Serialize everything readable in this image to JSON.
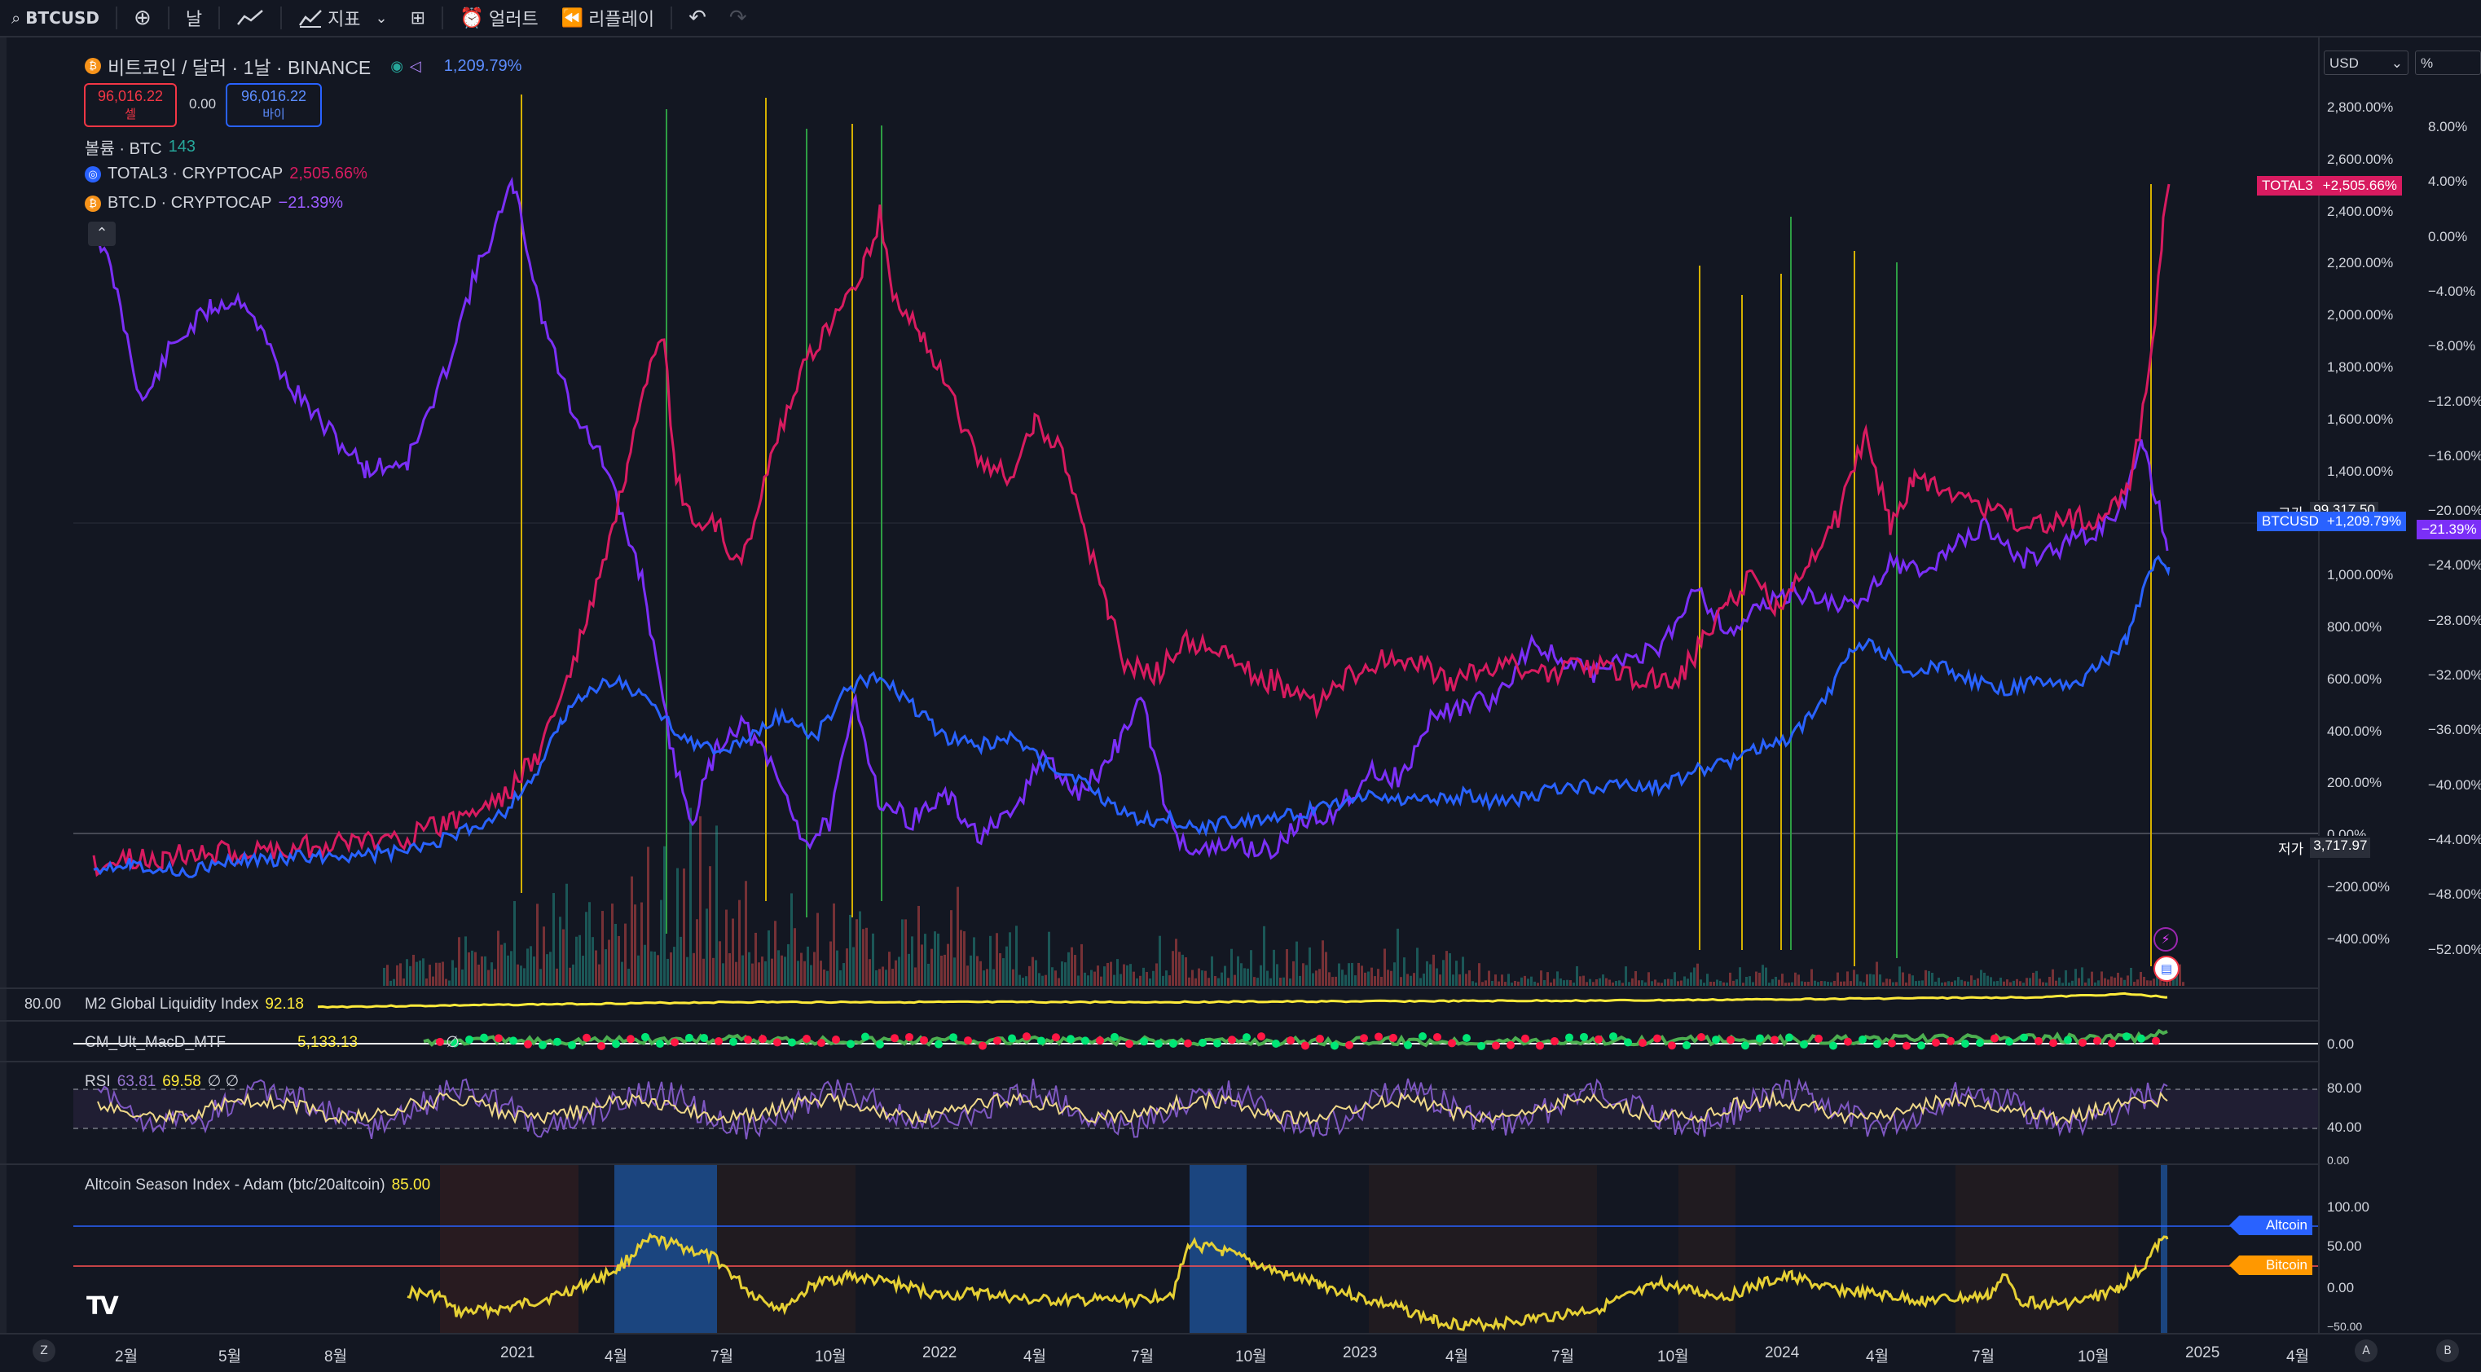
{
  "toolbar": {
    "symbol": "BTCUSD",
    "interval": "날",
    "indicators_label": "지표",
    "alert_label": "얼러트",
    "replay_label": "리플레이"
  },
  "legend": {
    "title": "비트코인 / 달러 · 1날 · BINANCE",
    "change_pct": "1,209.79%",
    "sell_price": "96,016.22",
    "sell_label": "셀",
    "spread": "0.00",
    "buy_price": "96,016.22",
    "buy_label": "바이",
    "volume_label": "볼륨 · BTC",
    "volume_value": "143",
    "total3_label": "TOTAL3 · CRYPTOCAP",
    "total3_value": "2,505.66%",
    "btcd_label": "BTC.D · CRYPTOCAP",
    "btcd_value": "−21.39%"
  },
  "right_axis": {
    "currency": "USD",
    "percent_toggle": "%",
    "labels": [
      "2,800.00%",
      "2,600.00%",
      "2,400.00%",
      "2,200.00%",
      "2,000.00%",
      "1,800.00%",
      "1,600.00%",
      "1,400.00%",
      "1,200.00%",
      "1,000.00%",
      "800.00%",
      "600.00%",
      "400.00%",
      "200.00%",
      "0.00%",
      "−200.00%",
      "−400.00%"
    ],
    "labels2": [
      "8.00%",
      "4.00%",
      "0.00%",
      "−4.00%",
      "−8.00%",
      "−12.00%",
      "−16.00%",
      "−20.00%",
      "−24.00%",
      "−28.00%",
      "−32.00%",
      "−36.00%",
      "−40.00%",
      "−44.00%",
      "−48.00%",
      "−52.00%"
    ],
    "total3_tag": "TOTAL3",
    "total3_tag_value": "+2,505.66%",
    "high_label": "고가",
    "high_value": "99,317.50",
    "btc_tag": "BTCUSD",
    "btc_tag_value": "+1,209.79%",
    "btcd_tag_value": "−21.39%",
    "low_label": "저가",
    "low_value": "3,717.97"
  },
  "m2": {
    "left_value": "80.00",
    "label": "M2 Global Liquidity Index",
    "value": "92.18"
  },
  "macd": {
    "label": "CM_Ult_MacD_MTF",
    "value": "5,133.13",
    "extra": "∅",
    "axis": "0.00"
  },
  "rsi": {
    "label": "RSI",
    "v1": "63.81",
    "v2": "69.58",
    "v3": "∅ ∅",
    "axis_top": "80.00",
    "axis_bot": "40.00",
    "axis_edge": "0.00"
  },
  "altseason": {
    "label": "Altcoin Season Index - Adam (btc/20altcoin)",
    "value": "85.00",
    "axis": [
      "100.00",
      "50.00",
      "0.00",
      "−50.00"
    ],
    "axis_edge": "100.00",
    "altcoin_tag": "Altcoin",
    "bitcoin_tag": "Bitcoin"
  },
  "time_axis": {
    "ticks": [
      "2월",
      "5월",
      "8월",
      "2021",
      "4월",
      "7월",
      "10월",
      "2022",
      "4월",
      "7월",
      "10월",
      "2023",
      "4월",
      "7월",
      "10월",
      "2024",
      "4월",
      "7월",
      "10월",
      "2025",
      "4월"
    ]
  },
  "bottom": {
    "left_btn": "Z",
    "right_a": "A",
    "right_b": "B"
  },
  "colors": {
    "bg": "#131722",
    "total3": "#d81b60",
    "btcusd": "#2962ff",
    "btcd": "#7b2ff7",
    "vline_yellow": "#d4b000",
    "vline_green": "#2e9e44"
  },
  "logo": "TV"
}
